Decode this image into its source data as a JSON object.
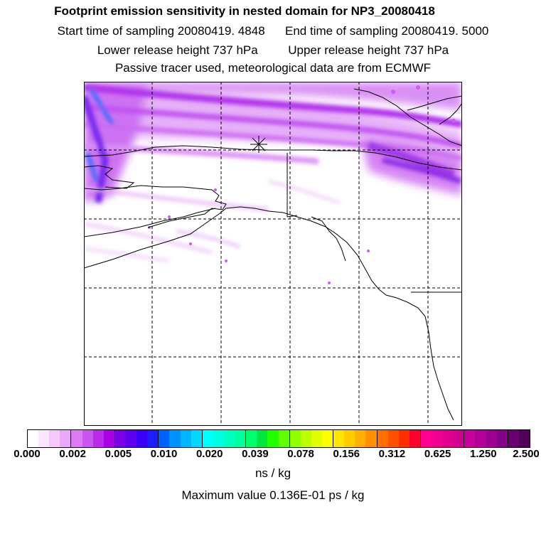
{
  "header": {
    "title": "Footprint emission sensitivity in nested domain for NP3_20080418",
    "start_label": "Start time of sampling 20080419.  4848",
    "end_label": "End time of sampling 20080419.  5000",
    "lower_label": "Lower release height  737 hPa",
    "upper_label": "Upper release height  737 hPa",
    "tracer_note": "Passive tracer used, meteorological data are from ECMWF"
  },
  "map": {
    "gridlines": "dashed",
    "receptor_marker": "asterisk-icon",
    "coastline_color": "#000000"
  },
  "colorbar": {
    "tick_labels": [
      "0.000",
      "0.002",
      "0.005",
      "0.010",
      "0.020",
      "0.039",
      "0.078",
      "0.156",
      "0.312",
      "0.625",
      "1.250",
      "2.500"
    ],
    "colors": [
      "#ffffff",
      "#fae6fd",
      "#f3c9fb",
      "#eaa8f8",
      "#db7bf3",
      "#cc55f0",
      "#bb2aeb",
      "#aa00e6",
      "#7a00e6",
      "#5a00ee",
      "#3a00f5",
      "#1c1cff",
      "#0060ff",
      "#0090ff",
      "#00b6ff",
      "#00d8ff",
      "#00ffff",
      "#00ffe0",
      "#00ffc0",
      "#00ffa0",
      "#00ff70",
      "#00e840",
      "#20ff00",
      "#60ff00",
      "#90ff00",
      "#bcff00",
      "#e0ff00",
      "#ffff00",
      "#ffe600",
      "#ffcc00",
      "#ffb000",
      "#ff9000",
      "#ff7000",
      "#ff5000",
      "#ff3000",
      "#ff0030",
      "#ff0090",
      "#f00090",
      "#e00090",
      "#d00090",
      "#c8009c",
      "#b4009a",
      "#9c0090",
      "#82008a",
      "#6a0070",
      "#520058"
    ],
    "unit": "ns / kg"
  },
  "footer": {
    "max_value": "Maximum value  0.136E-01 ps / kg"
  }
}
